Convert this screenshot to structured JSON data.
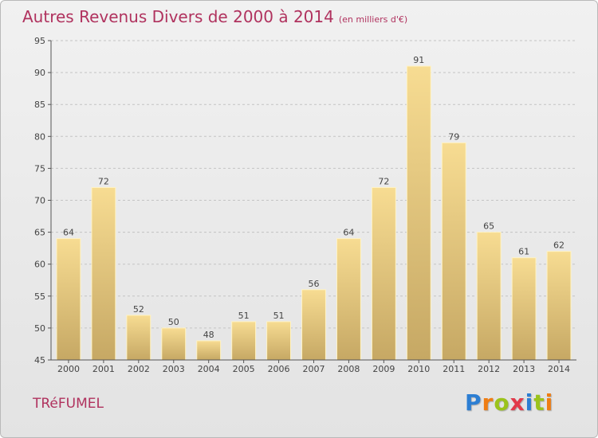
{
  "title": "Autres Revenus Divers de 2000 à 2014",
  "unit": "(en milliers d'€)",
  "commune": "TRéFUMEL",
  "logo": {
    "letters": [
      "P",
      "r",
      "o",
      "x",
      "i",
      "t",
      "i"
    ],
    "colors": [
      "#2c7ed3",
      "#ef7d12",
      "#9bc31b",
      "#e23a4a",
      "#2c7ed3",
      "#9bc31b",
      "#ef7d12"
    ]
  },
  "chart_data": {
    "type": "bar",
    "title": "Autres Revenus Divers de 2000 à 2014",
    "categories": [
      "2000",
      "2001",
      "2002",
      "2003",
      "2004",
      "2005",
      "2006",
      "2007",
      "2008",
      "2009",
      "2010",
      "2011",
      "2012",
      "2013",
      "2014"
    ],
    "values": [
      64,
      72,
      52,
      50,
      48,
      51,
      51,
      56,
      64,
      72,
      91,
      79,
      65,
      61,
      62
    ],
    "data_labels": [
      "64",
      "72",
      "52",
      "50",
      "48",
      "51",
      "51",
      "56",
      "64",
      "72",
      "91",
      "79",
      "65",
      "61",
      "62"
    ],
    "ylim": [
      45,
      95
    ],
    "yticks": [
      45,
      50,
      55,
      60,
      65,
      70,
      75,
      80,
      85,
      90,
      95
    ],
    "grid": "horizontal-dashed",
    "bar_color_top": "#f6da8e",
    "bar_color_bottom": "#c9ab66",
    "label_color": "#444444"
  }
}
